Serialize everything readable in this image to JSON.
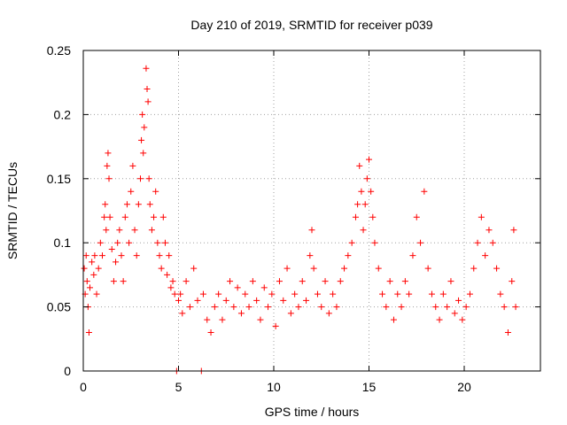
{
  "chart_data": {
    "type": "scatter",
    "title": "Day 210 of 2019, SRMTID for receiver p039",
    "xlabel": "GPS time / hours",
    "ylabel": "SRMTID / TECUs",
    "xlim": [
      0,
      24
    ],
    "ylim": [
      0,
      0.25
    ],
    "x_ticks": [
      0,
      5,
      10,
      15,
      20
    ],
    "x_tick_labels": [
      "0",
      "5",
      "10",
      "15",
      "20"
    ],
    "y_ticks": [
      0,
      0.05,
      0.1,
      0.15,
      0.2,
      0.25
    ],
    "y_tick_labels": [
      "0",
      "0.05",
      "0.1",
      "0.15",
      "0.2",
      "0.25"
    ],
    "grid": true,
    "marker": "+",
    "series": [
      {
        "name": "SRMTID",
        "color": "#ff0000",
        "points": [
          [
            0.05,
            0.08
          ],
          [
            0.1,
            0.06
          ],
          [
            0.15,
            0.09
          ],
          [
            0.2,
            0.07
          ],
          [
            0.25,
            0.05
          ],
          [
            0.3,
            0.03
          ],
          [
            0.35,
            0.065
          ],
          [
            0.45,
            0.085
          ],
          [
            0.55,
            0.075
          ],
          [
            0.6,
            0.09
          ],
          [
            0.7,
            0.06
          ],
          [
            0.8,
            0.08
          ],
          [
            0.9,
            0.1
          ],
          [
            1.0,
            0.09
          ],
          [
            1.1,
            0.12
          ],
          [
            1.15,
            0.13
          ],
          [
            1.2,
            0.11
          ],
          [
            1.25,
            0.16
          ],
          [
            1.3,
            0.17
          ],
          [
            1.35,
            0.15
          ],
          [
            1.4,
            0.12
          ],
          [
            1.5,
            0.095
          ],
          [
            1.6,
            0.07
          ],
          [
            1.7,
            0.085
          ],
          [
            1.8,
            0.1
          ],
          [
            1.9,
            0.11
          ],
          [
            2.0,
            0.09
          ],
          [
            2.1,
            0.07
          ],
          [
            2.2,
            0.12
          ],
          [
            2.3,
            0.13
          ],
          [
            2.4,
            0.1
          ],
          [
            2.5,
            0.14
          ],
          [
            2.6,
            0.16
          ],
          [
            2.7,
            0.11
          ],
          [
            2.8,
            0.09
          ],
          [
            2.9,
            0.13
          ],
          [
            3.0,
            0.15
          ],
          [
            3.05,
            0.18
          ],
          [
            3.1,
            0.2
          ],
          [
            3.15,
            0.17
          ],
          [
            3.2,
            0.19
          ],
          [
            3.3,
            0.236
          ],
          [
            3.35,
            0.22
          ],
          [
            3.4,
            0.21
          ],
          [
            3.45,
            0.15
          ],
          [
            3.5,
            0.13
          ],
          [
            3.6,
            0.11
          ],
          [
            3.7,
            0.12
          ],
          [
            3.8,
            0.14
          ],
          [
            3.9,
            0.1
          ],
          [
            4.0,
            0.09
          ],
          [
            4.1,
            0.08
          ],
          [
            4.2,
            0.12
          ],
          [
            4.3,
            0.1
          ],
          [
            4.4,
            0.075
          ],
          [
            4.5,
            0.09
          ],
          [
            4.6,
            0.065
          ],
          [
            4.7,
            0.07
          ],
          [
            4.8,
            0.06
          ],
          [
            4.9,
            0.0
          ],
          [
            5.0,
            0.055
          ],
          [
            5.1,
            0.06
          ],
          [
            5.2,
            0.045
          ],
          [
            5.4,
            0.07
          ],
          [
            5.6,
            0.05
          ],
          [
            5.8,
            0.08
          ],
          [
            6.0,
            0.055
          ],
          [
            6.2,
            0.0
          ],
          [
            6.3,
            0.06
          ],
          [
            6.5,
            0.04
          ],
          [
            6.7,
            0.03
          ],
          [
            6.9,
            0.05
          ],
          [
            7.1,
            0.06
          ],
          [
            7.3,
            0.04
          ],
          [
            7.5,
            0.055
          ],
          [
            7.7,
            0.07
          ],
          [
            7.9,
            0.05
          ],
          [
            8.1,
            0.065
          ],
          [
            8.3,
            0.045
          ],
          [
            8.5,
            0.06
          ],
          [
            8.7,
            0.05
          ],
          [
            8.9,
            0.07
          ],
          [
            9.1,
            0.055
          ],
          [
            9.3,
            0.04
          ],
          [
            9.5,
            0.065
          ],
          [
            9.7,
            0.05
          ],
          [
            9.9,
            0.06
          ],
          [
            10.1,
            0.035
          ],
          [
            10.3,
            0.07
          ],
          [
            10.5,
            0.055
          ],
          [
            10.7,
            0.08
          ],
          [
            10.9,
            0.045
          ],
          [
            11.1,
            0.06
          ],
          [
            11.3,
            0.05
          ],
          [
            11.5,
            0.07
          ],
          [
            11.7,
            0.055
          ],
          [
            11.9,
            0.09
          ],
          [
            12.0,
            0.11
          ],
          [
            12.1,
            0.08
          ],
          [
            12.3,
            0.06
          ],
          [
            12.5,
            0.05
          ],
          [
            12.7,
            0.07
          ],
          [
            12.9,
            0.045
          ],
          [
            13.1,
            0.06
          ],
          [
            13.3,
            0.05
          ],
          [
            13.5,
            0.07
          ],
          [
            13.7,
            0.08
          ],
          [
            13.9,
            0.09
          ],
          [
            14.1,
            0.1
          ],
          [
            14.3,
            0.12
          ],
          [
            14.4,
            0.13
          ],
          [
            14.5,
            0.16
          ],
          [
            14.6,
            0.14
          ],
          [
            14.7,
            0.11
          ],
          [
            14.8,
            0.13
          ],
          [
            14.9,
            0.15
          ],
          [
            15.0,
            0.165
          ],
          [
            15.1,
            0.14
          ],
          [
            15.2,
            0.12
          ],
          [
            15.3,
            0.1
          ],
          [
            15.5,
            0.08
          ],
          [
            15.7,
            0.06
          ],
          [
            15.9,
            0.05
          ],
          [
            16.1,
            0.07
          ],
          [
            16.3,
            0.04
          ],
          [
            16.5,
            0.06
          ],
          [
            16.7,
            0.05
          ],
          [
            16.9,
            0.07
          ],
          [
            17.1,
            0.06
          ],
          [
            17.3,
            0.09
          ],
          [
            17.5,
            0.12
          ],
          [
            17.7,
            0.1
          ],
          [
            17.9,
            0.14
          ],
          [
            18.1,
            0.08
          ],
          [
            18.3,
            0.06
          ],
          [
            18.5,
            0.05
          ],
          [
            18.7,
            0.04
          ],
          [
            18.9,
            0.06
          ],
          [
            19.1,
            0.05
          ],
          [
            19.3,
            0.07
          ],
          [
            19.5,
            0.045
          ],
          [
            19.7,
            0.055
          ],
          [
            19.9,
            0.04
          ],
          [
            20.1,
            0.05
          ],
          [
            20.3,
            0.06
          ],
          [
            20.5,
            0.08
          ],
          [
            20.7,
            0.1
          ],
          [
            20.9,
            0.12
          ],
          [
            21.1,
            0.09
          ],
          [
            21.3,
            0.11
          ],
          [
            21.5,
            0.1
          ],
          [
            21.7,
            0.08
          ],
          [
            21.9,
            0.06
          ],
          [
            22.1,
            0.05
          ],
          [
            22.3,
            0.03
          ],
          [
            22.5,
            0.07
          ],
          [
            22.6,
            0.11
          ],
          [
            22.7,
            0.05
          ]
        ]
      }
    ]
  }
}
